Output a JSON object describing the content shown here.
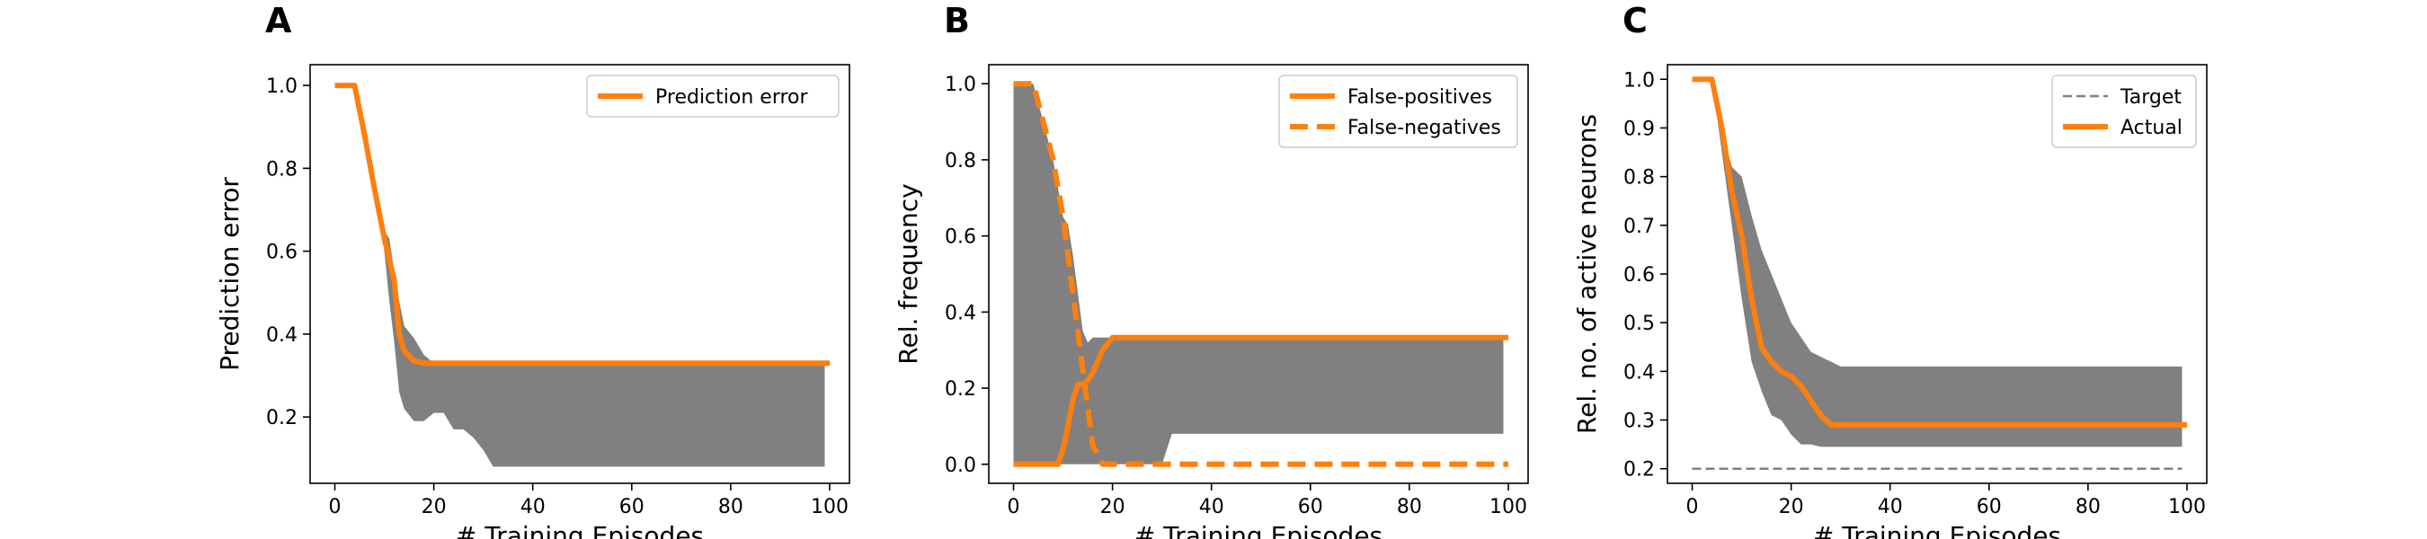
{
  "colors": {
    "actual": "#ff7f0e",
    "band": "#808080",
    "target": "#808080",
    "axis": "#000000"
  },
  "chart_data": [
    {
      "type": "line",
      "panel_label": "A",
      "xlabel": "# Training Episodes",
      "ylabel": "Prediction error",
      "xlim": [
        -5,
        104
      ],
      "ylim": [
        0.04,
        1.05
      ],
      "xticks": [
        0,
        20,
        40,
        60,
        80,
        100
      ],
      "yticks": [
        0.2,
        0.4,
        0.6,
        0.8,
        1.0
      ],
      "ytick_labels": [
        "0.2",
        "0.4",
        "0.6",
        "0.8",
        "1.0"
      ],
      "legend_position": "top-right",
      "series": [
        {
          "name": "Prediction error",
          "style": "solid",
          "x": [
            0,
            4,
            6,
            8,
            10,
            12,
            13,
            14,
            16,
            18,
            20,
            100
          ],
          "y": [
            1.0,
            1.0,
            0.88,
            0.75,
            0.63,
            0.53,
            0.4,
            0.36,
            0.335,
            0.33,
            0.33,
            0.33
          ]
        }
      ],
      "band": {
        "x": [
          0,
          4,
          6,
          8,
          10,
          11,
          12,
          13,
          14,
          16,
          18,
          20,
          22,
          24,
          26,
          28,
          30,
          32,
          99
        ],
        "upper": [
          1.0,
          1.0,
          0.88,
          0.76,
          0.65,
          0.63,
          0.55,
          0.48,
          0.42,
          0.39,
          0.35,
          0.33,
          0.33,
          0.33,
          0.33,
          0.33,
          0.33,
          0.33,
          0.33
        ],
        "lower": [
          1.0,
          1.0,
          0.88,
          0.74,
          0.6,
          0.48,
          0.38,
          0.26,
          0.22,
          0.19,
          0.19,
          0.21,
          0.21,
          0.17,
          0.17,
          0.15,
          0.12,
          0.08,
          0.08
        ]
      }
    },
    {
      "type": "line",
      "panel_label": "B",
      "xlabel": "# Training Episodes",
      "ylabel": "Rel. frequency",
      "xlim": [
        -5,
        104
      ],
      "ylim": [
        -0.05,
        1.05
      ],
      "xticks": [
        0,
        20,
        40,
        60,
        80,
        100
      ],
      "yticks": [
        0.0,
        0.2,
        0.4,
        0.6,
        0.8,
        1.0
      ],
      "ytick_labels": [
        "0.0",
        "0.2",
        "0.4",
        "0.6",
        "0.8",
        "1.0"
      ],
      "legend_position": "top-right",
      "series": [
        {
          "name": "False-positives",
          "style": "solid",
          "x": [
            0,
            9,
            10,
            11,
            12,
            13,
            14,
            15,
            16,
            17,
            18,
            20,
            100
          ],
          "y": [
            0.0,
            0.0,
            0.04,
            0.1,
            0.17,
            0.21,
            0.21,
            0.22,
            0.24,
            0.27,
            0.3,
            0.333,
            0.333
          ]
        },
        {
          "name": "False-negatives",
          "style": "dashed",
          "x": [
            0,
            4,
            6,
            8,
            10,
            12,
            14,
            16,
            18,
            20,
            100
          ],
          "y": [
            1.0,
            1.0,
            0.9,
            0.8,
            0.65,
            0.45,
            0.25,
            0.05,
            0.0,
            0.0,
            0.0
          ]
        }
      ],
      "band": {
        "x": [
          0,
          4,
          6,
          8,
          10,
          11,
          12,
          13,
          14,
          15,
          16,
          17,
          18,
          20,
          22,
          24,
          26,
          28,
          30,
          32,
          99
        ],
        "upper": [
          1.0,
          1.0,
          0.9,
          0.8,
          0.65,
          0.63,
          0.55,
          0.45,
          0.35,
          0.32,
          0.333,
          0.333,
          0.333,
          0.333,
          0.333,
          0.333,
          0.333,
          0.333,
          0.333,
          0.333,
          0.333
        ],
        "lower": [
          0.0,
          0.0,
          0.0,
          0.0,
          0.0,
          0.0,
          0.0,
          0.0,
          0.0,
          0.0,
          0.0,
          0.0,
          0.0,
          0.0,
          0.0,
          0.0,
          0.0,
          0.0,
          0.0,
          0.08,
          0.08
        ]
      }
    },
    {
      "type": "line",
      "panel_label": "C",
      "xlabel": "# Training Episodes",
      "ylabel": "Rel. no. of active neurons",
      "xlim": [
        -5,
        104
      ],
      "ylim": [
        0.17,
        1.03
      ],
      "xticks": [
        0,
        20,
        40,
        60,
        80,
        100
      ],
      "yticks": [
        0.2,
        0.3,
        0.4,
        0.5,
        0.6,
        0.7,
        0.8,
        0.9,
        1.0
      ],
      "ytick_labels": [
        "0.2",
        "0.3",
        "0.4",
        "0.5",
        "0.6",
        "0.7",
        "0.8",
        "0.9",
        "1.0"
      ],
      "legend_position": "top-right",
      "series": [
        {
          "name": "Target",
          "style": "thin-dashed",
          "x": [
            0,
            99
          ],
          "y": [
            0.2,
            0.2
          ]
        },
        {
          "name": "Actual",
          "style": "solid",
          "x": [
            0,
            4,
            6,
            8,
            10,
            12,
            14,
            16,
            18,
            20,
            22,
            24,
            26,
            28,
            100
          ],
          "y": [
            1.0,
            1.0,
            0.9,
            0.77,
            0.68,
            0.55,
            0.45,
            0.42,
            0.4,
            0.39,
            0.37,
            0.34,
            0.31,
            0.29,
            0.29
          ]
        }
      ],
      "band": {
        "x": [
          0,
          4,
          6,
          8,
          10,
          12,
          14,
          16,
          18,
          20,
          22,
          24,
          26,
          28,
          30,
          99
        ],
        "upper": [
          1.0,
          1.0,
          0.9,
          0.82,
          0.8,
          0.72,
          0.65,
          0.6,
          0.55,
          0.5,
          0.47,
          0.44,
          0.43,
          0.42,
          0.41,
          0.41
        ],
        "lower": [
          1.0,
          1.0,
          0.85,
          0.7,
          0.55,
          0.42,
          0.36,
          0.31,
          0.3,
          0.27,
          0.25,
          0.25,
          0.245,
          0.245,
          0.245,
          0.245
        ]
      }
    }
  ]
}
